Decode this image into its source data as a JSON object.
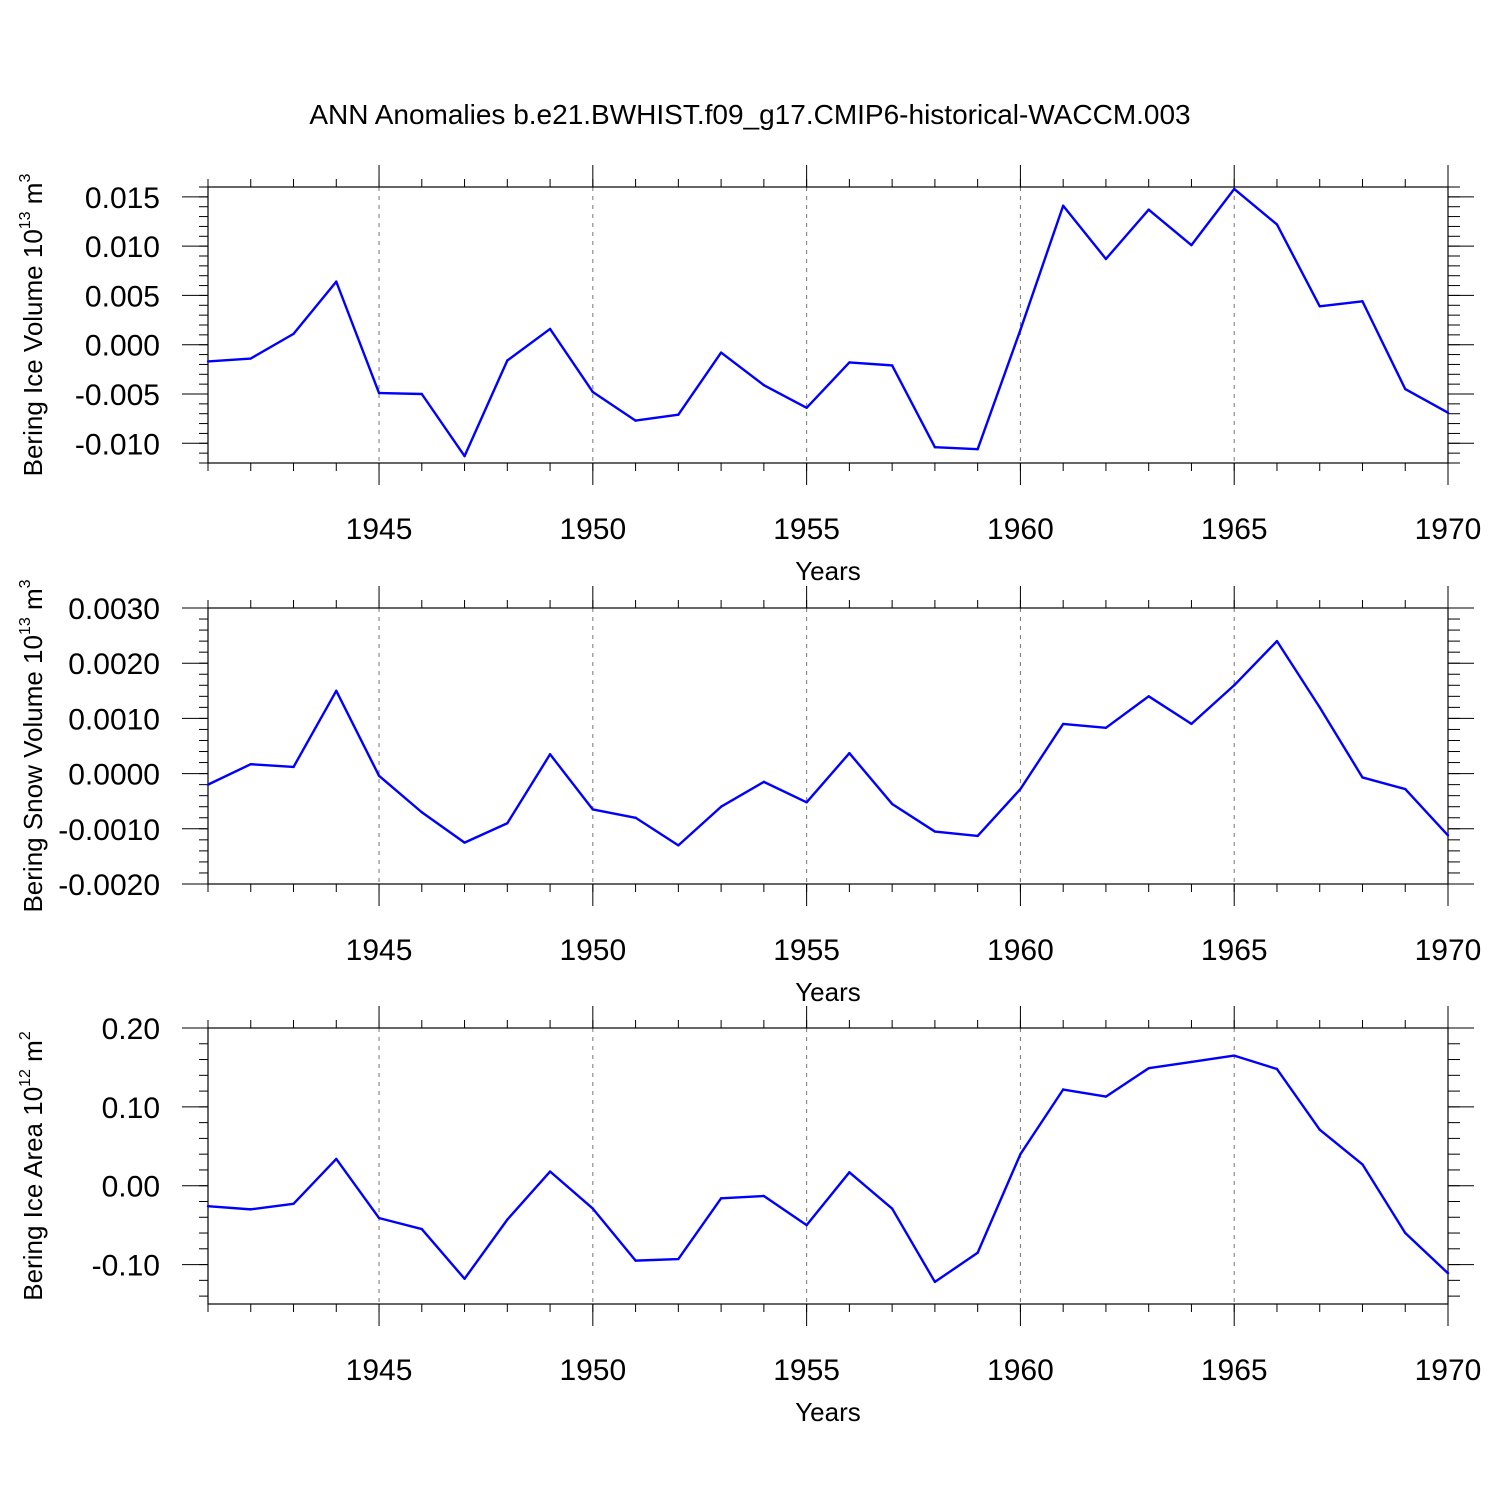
{
  "title": "ANN Anomalies b.e21.BWHIST.f09_g17.CMIP6-historical-WACCM.003",
  "series_color": "#0000ff",
  "chart_data": [
    {
      "type": "line",
      "ylabel": "Bering Ice Volume 10",
      "ylabel_exp": "13",
      "ylabel_unit": " m",
      "ylabel_unit_exp": "3",
      "xlabel": "Years",
      "xlim": [
        1941,
        1970
      ],
      "ylim": [
        -0.012,
        0.016
      ],
      "yticks": [
        -0.01,
        -0.005,
        0.0,
        0.005,
        0.01,
        0.015
      ],
      "ytick_labels": [
        "-0.010",
        "-0.005",
        "0.000",
        "0.005",
        "0.010",
        "0.015"
      ],
      "xticks": [
        1945,
        1950,
        1955,
        1960,
        1965,
        1970
      ],
      "xtick_labels": [
        "1945",
        "1950",
        "1955",
        "1960",
        "1965",
        "1970"
      ],
      "x": [
        1941,
        1942,
        1943,
        1944,
        1945,
        1946,
        1947,
        1948,
        1949,
        1950,
        1951,
        1952,
        1953,
        1954,
        1955,
        1956,
        1957,
        1958,
        1959,
        1960,
        1961,
        1962,
        1963,
        1964,
        1965,
        1966,
        1967,
        1968,
        1969,
        1970
      ],
      "values": [
        -0.0017,
        -0.0014,
        0.0011,
        0.0064,
        -0.0049,
        -0.005,
        -0.0113,
        -0.0016,
        0.0016,
        -0.0048,
        -0.0077,
        -0.0071,
        -0.0008,
        -0.0041,
        -0.0064,
        -0.0018,
        -0.0021,
        -0.0104,
        -0.0106,
        0.0015,
        0.0141,
        0.0087,
        0.0137,
        0.0101,
        0.0158,
        0.0122,
        0.0039,
        0.0044,
        -0.0045,
        -0.0069
      ]
    },
    {
      "type": "line",
      "ylabel": "Bering Snow Volume 10",
      "ylabel_exp": "13",
      "ylabel_unit": " m",
      "ylabel_unit_exp": "3",
      "xlabel": "Years",
      "xlim": [
        1941,
        1970
      ],
      "ylim": [
        -0.002,
        0.003
      ],
      "yticks": [
        -0.002,
        -0.001,
        0.0,
        0.001,
        0.002,
        0.003
      ],
      "ytick_labels": [
        "-0.0020",
        "-0.0010",
        "0.0000",
        "0.0010",
        "0.0020",
        "0.0030"
      ],
      "xticks": [
        1945,
        1950,
        1955,
        1960,
        1965,
        1970
      ],
      "xtick_labels": [
        "1945",
        "1950",
        "1955",
        "1960",
        "1965",
        "1970"
      ],
      "x": [
        1941,
        1942,
        1943,
        1944,
        1945,
        1946,
        1947,
        1948,
        1949,
        1950,
        1951,
        1952,
        1953,
        1954,
        1955,
        1956,
        1957,
        1958,
        1959,
        1960,
        1961,
        1962,
        1963,
        1964,
        1965,
        1966,
        1967,
        1968,
        1969,
        1970
      ],
      "values": [
        -0.0002,
        0.00017,
        0.00012,
        0.0015,
        -4e-05,
        -0.0007,
        -0.00125,
        -0.0009,
        0.00035,
        -0.00065,
        -0.0008,
        -0.0013,
        -0.0006,
        -0.00015,
        -0.00052,
        0.00037,
        -0.00055,
        -0.00105,
        -0.00113,
        -0.00028,
        0.0009,
        0.00083,
        0.0014,
        0.0009,
        0.0016,
        0.0024,
        0.0012,
        -7e-05,
        -0.00028,
        -0.00112
      ]
    },
    {
      "type": "line",
      "ylabel": "Bering Ice Area 10",
      "ylabel_exp": "12",
      "ylabel_unit": " m",
      "ylabel_unit_exp": "2",
      "xlabel": "Years",
      "xlim": [
        1941,
        1970
      ],
      "ylim": [
        -0.15,
        0.2
      ],
      "yticks": [
        -0.1,
        0.0,
        0.1,
        0.2
      ],
      "ytick_labels": [
        "-0.10",
        "0.00",
        "0.10",
        "0.20"
      ],
      "xticks": [
        1945,
        1950,
        1955,
        1960,
        1965,
        1970
      ],
      "xtick_labels": [
        "1945",
        "1950",
        "1955",
        "1960",
        "1965",
        "1970"
      ],
      "x": [
        1941,
        1942,
        1943,
        1944,
        1945,
        1946,
        1947,
        1948,
        1949,
        1950,
        1951,
        1952,
        1953,
        1954,
        1955,
        1956,
        1957,
        1958,
        1959,
        1960,
        1961,
        1962,
        1963,
        1964,
        1965,
        1966,
        1967,
        1968,
        1969,
        1970
      ],
      "values": [
        -0.026,
        -0.03,
        -0.023,
        0.034,
        -0.041,
        -0.055,
        -0.118,
        -0.043,
        0.018,
        -0.029,
        -0.095,
        -0.093,
        -0.016,
        -0.013,
        -0.05,
        0.017,
        -0.029,
        -0.122,
        -0.085,
        0.04,
        0.122,
        0.113,
        0.149,
        0.157,
        0.165,
        0.148,
        0.071,
        0.027,
        -0.06,
        -0.111
      ]
    }
  ]
}
